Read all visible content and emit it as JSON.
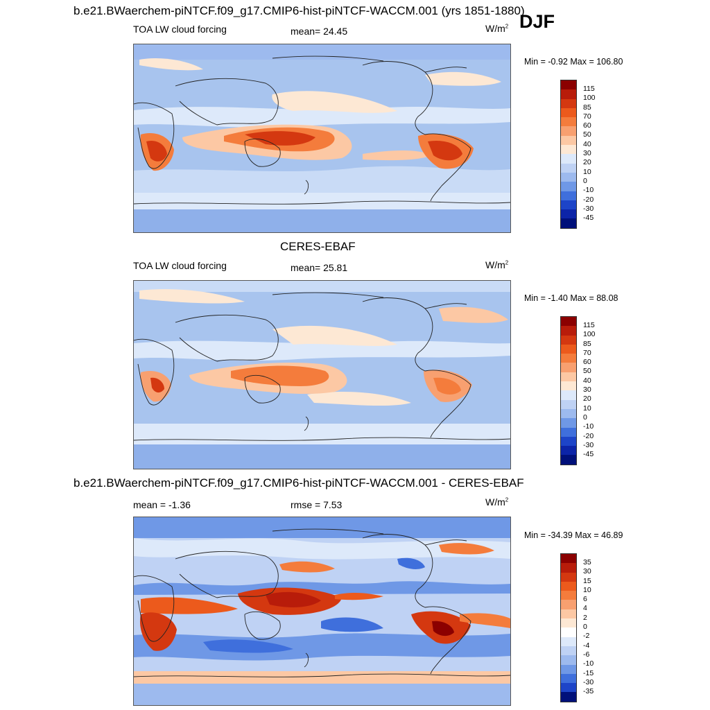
{
  "header": {
    "title": "b.e21.BWaerchem-piNTCF.f09_g17.CMIP6-hist-piNTCF-WACCM.001 (yrs 1851-1880)",
    "season": "DJF"
  },
  "panels": [
    {
      "id": "model",
      "variable": "TOA LW cloud forcing",
      "stat": "mean=  24.45",
      "units": "W/m",
      "units_sup": "2",
      "minmax": "Min =  -0.92 Max = 106.80",
      "colorbar": {
        "labels": [
          "115",
          "100",
          "85",
          "70",
          "60",
          "50",
          "40",
          "30",
          "20",
          "10",
          "0",
          "-10",
          "-20",
          "-30",
          "-45"
        ],
        "colors": [
          "#8b0000",
          "#b81c0a",
          "#d43810",
          "#ec5a1c",
          "#f47c3c",
          "#f8a070",
          "#fcc8a4",
          "#fde8d4",
          "#dde9fa",
          "#bfd2f4",
          "#9dbaee",
          "#6f98e6",
          "#3f6fdc",
          "#1d44c8",
          "#0c24a8",
          "#00107a"
        ]
      }
    },
    {
      "id": "obs",
      "panel_title": "CERES-EBAF",
      "variable": "TOA LW cloud forcing",
      "stat": "mean=  25.81",
      "units": "W/m",
      "units_sup": "2",
      "minmax": "Min =  -1.40 Max =  88.08",
      "colorbar": {
        "labels": [
          "115",
          "100",
          "85",
          "70",
          "60",
          "50",
          "40",
          "30",
          "20",
          "10",
          "0",
          "-10",
          "-20",
          "-30",
          "-45"
        ],
        "colors": [
          "#8b0000",
          "#b81c0a",
          "#d43810",
          "#ec5a1c",
          "#f47c3c",
          "#f8a070",
          "#fcc8a4",
          "#fde8d4",
          "#dde9fa",
          "#bfd2f4",
          "#9dbaee",
          "#6f98e6",
          "#3f6fdc",
          "#1d44c8",
          "#0c24a8",
          "#00107a"
        ]
      }
    },
    {
      "id": "diff",
      "panel_title": "b.e21.BWaerchem-piNTCF.f09_g17.CMIP6-hist-piNTCF-WACCM.001 - CERES-EBAF",
      "stat_left": "mean =  -1.36",
      "stat": "rmse =   7.53",
      "units": "W/m",
      "units_sup": "2",
      "minmax": "Min = -34.39 Max =  46.89",
      "colorbar": {
        "labels": [
          "35",
          "30",
          "15",
          "10",
          "6",
          "4",
          "2",
          "0",
          "-2",
          "-4",
          "-6",
          "-10",
          "-15",
          "-30",
          "-35"
        ],
        "colors": [
          "#8b0000",
          "#b81c0a",
          "#d43810",
          "#ec5a1c",
          "#f47c3c",
          "#f8a070",
          "#fcc8a4",
          "#fde8d4",
          "#ffffff",
          "#dde9fa",
          "#bfd2f4",
          "#9dbaee",
          "#6f98e6",
          "#3f6fdc",
          "#1d44c8",
          "#00107a"
        ]
      }
    }
  ]
}
